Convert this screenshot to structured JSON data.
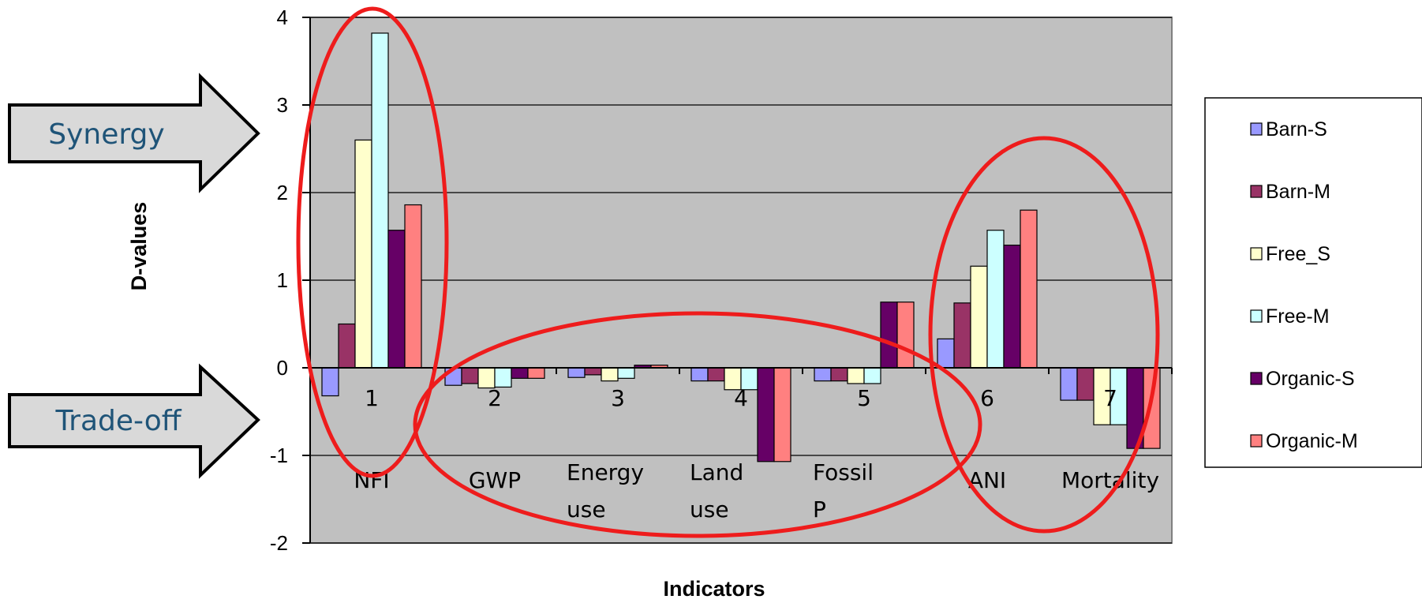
{
  "chart_data": {
    "type": "bar",
    "categories": [
      "1",
      "2",
      "3",
      "4",
      "5",
      "6",
      "7"
    ],
    "category_names": [
      "NFI",
      "GWP",
      "Energy use",
      "Land use",
      "Fossil P",
      "ANI",
      "Mortality"
    ],
    "xlabel": "Indicators",
    "ylabel": "D-values",
    "ylim": [
      -2,
      4
    ],
    "yticks": [
      -2,
      -1,
      0,
      1,
      2,
      3,
      4
    ],
    "grid": true,
    "legend_position": "right",
    "series": [
      {
        "name": "Barn-S",
        "color": "#9999ff",
        "values": [
          -0.32,
          -0.2,
          -0.11,
          -0.15,
          -0.15,
          0.33,
          -0.37
        ]
      },
      {
        "name": "Barn-M",
        "color": "#993366",
        "values": [
          0.5,
          -0.18,
          -0.08,
          -0.15,
          -0.15,
          0.74,
          -0.37
        ]
      },
      {
        "name": "Free_S",
        "color": "#ffffcc",
        "values": [
          2.6,
          -0.23,
          -0.15,
          -0.25,
          -0.18,
          1.16,
          -0.65
        ]
      },
      {
        "name": "Free-M",
        "color": "#ccffff",
        "values": [
          3.82,
          -0.22,
          -0.12,
          -0.25,
          -0.18,
          1.57,
          -0.65
        ]
      },
      {
        "name": "Organic-S",
        "color": "#660066",
        "values": [
          1.57,
          -0.12,
          0.03,
          -1.07,
          0.75,
          1.4,
          -0.92
        ]
      },
      {
        "name": "Organic-M",
        "color": "#ff8080",
        "values": [
          1.86,
          -0.12,
          0.03,
          -1.07,
          0.75,
          1.8,
          -0.92
        ]
      }
    ],
    "annotations": {
      "synergy": "Synergy",
      "tradeoff": "Trade-off"
    }
  },
  "colors": {
    "plot_bg": "#c0c0c0",
    "ellipse": "#ee1c1c",
    "arrow_fill": "#d9d9d9"
  }
}
